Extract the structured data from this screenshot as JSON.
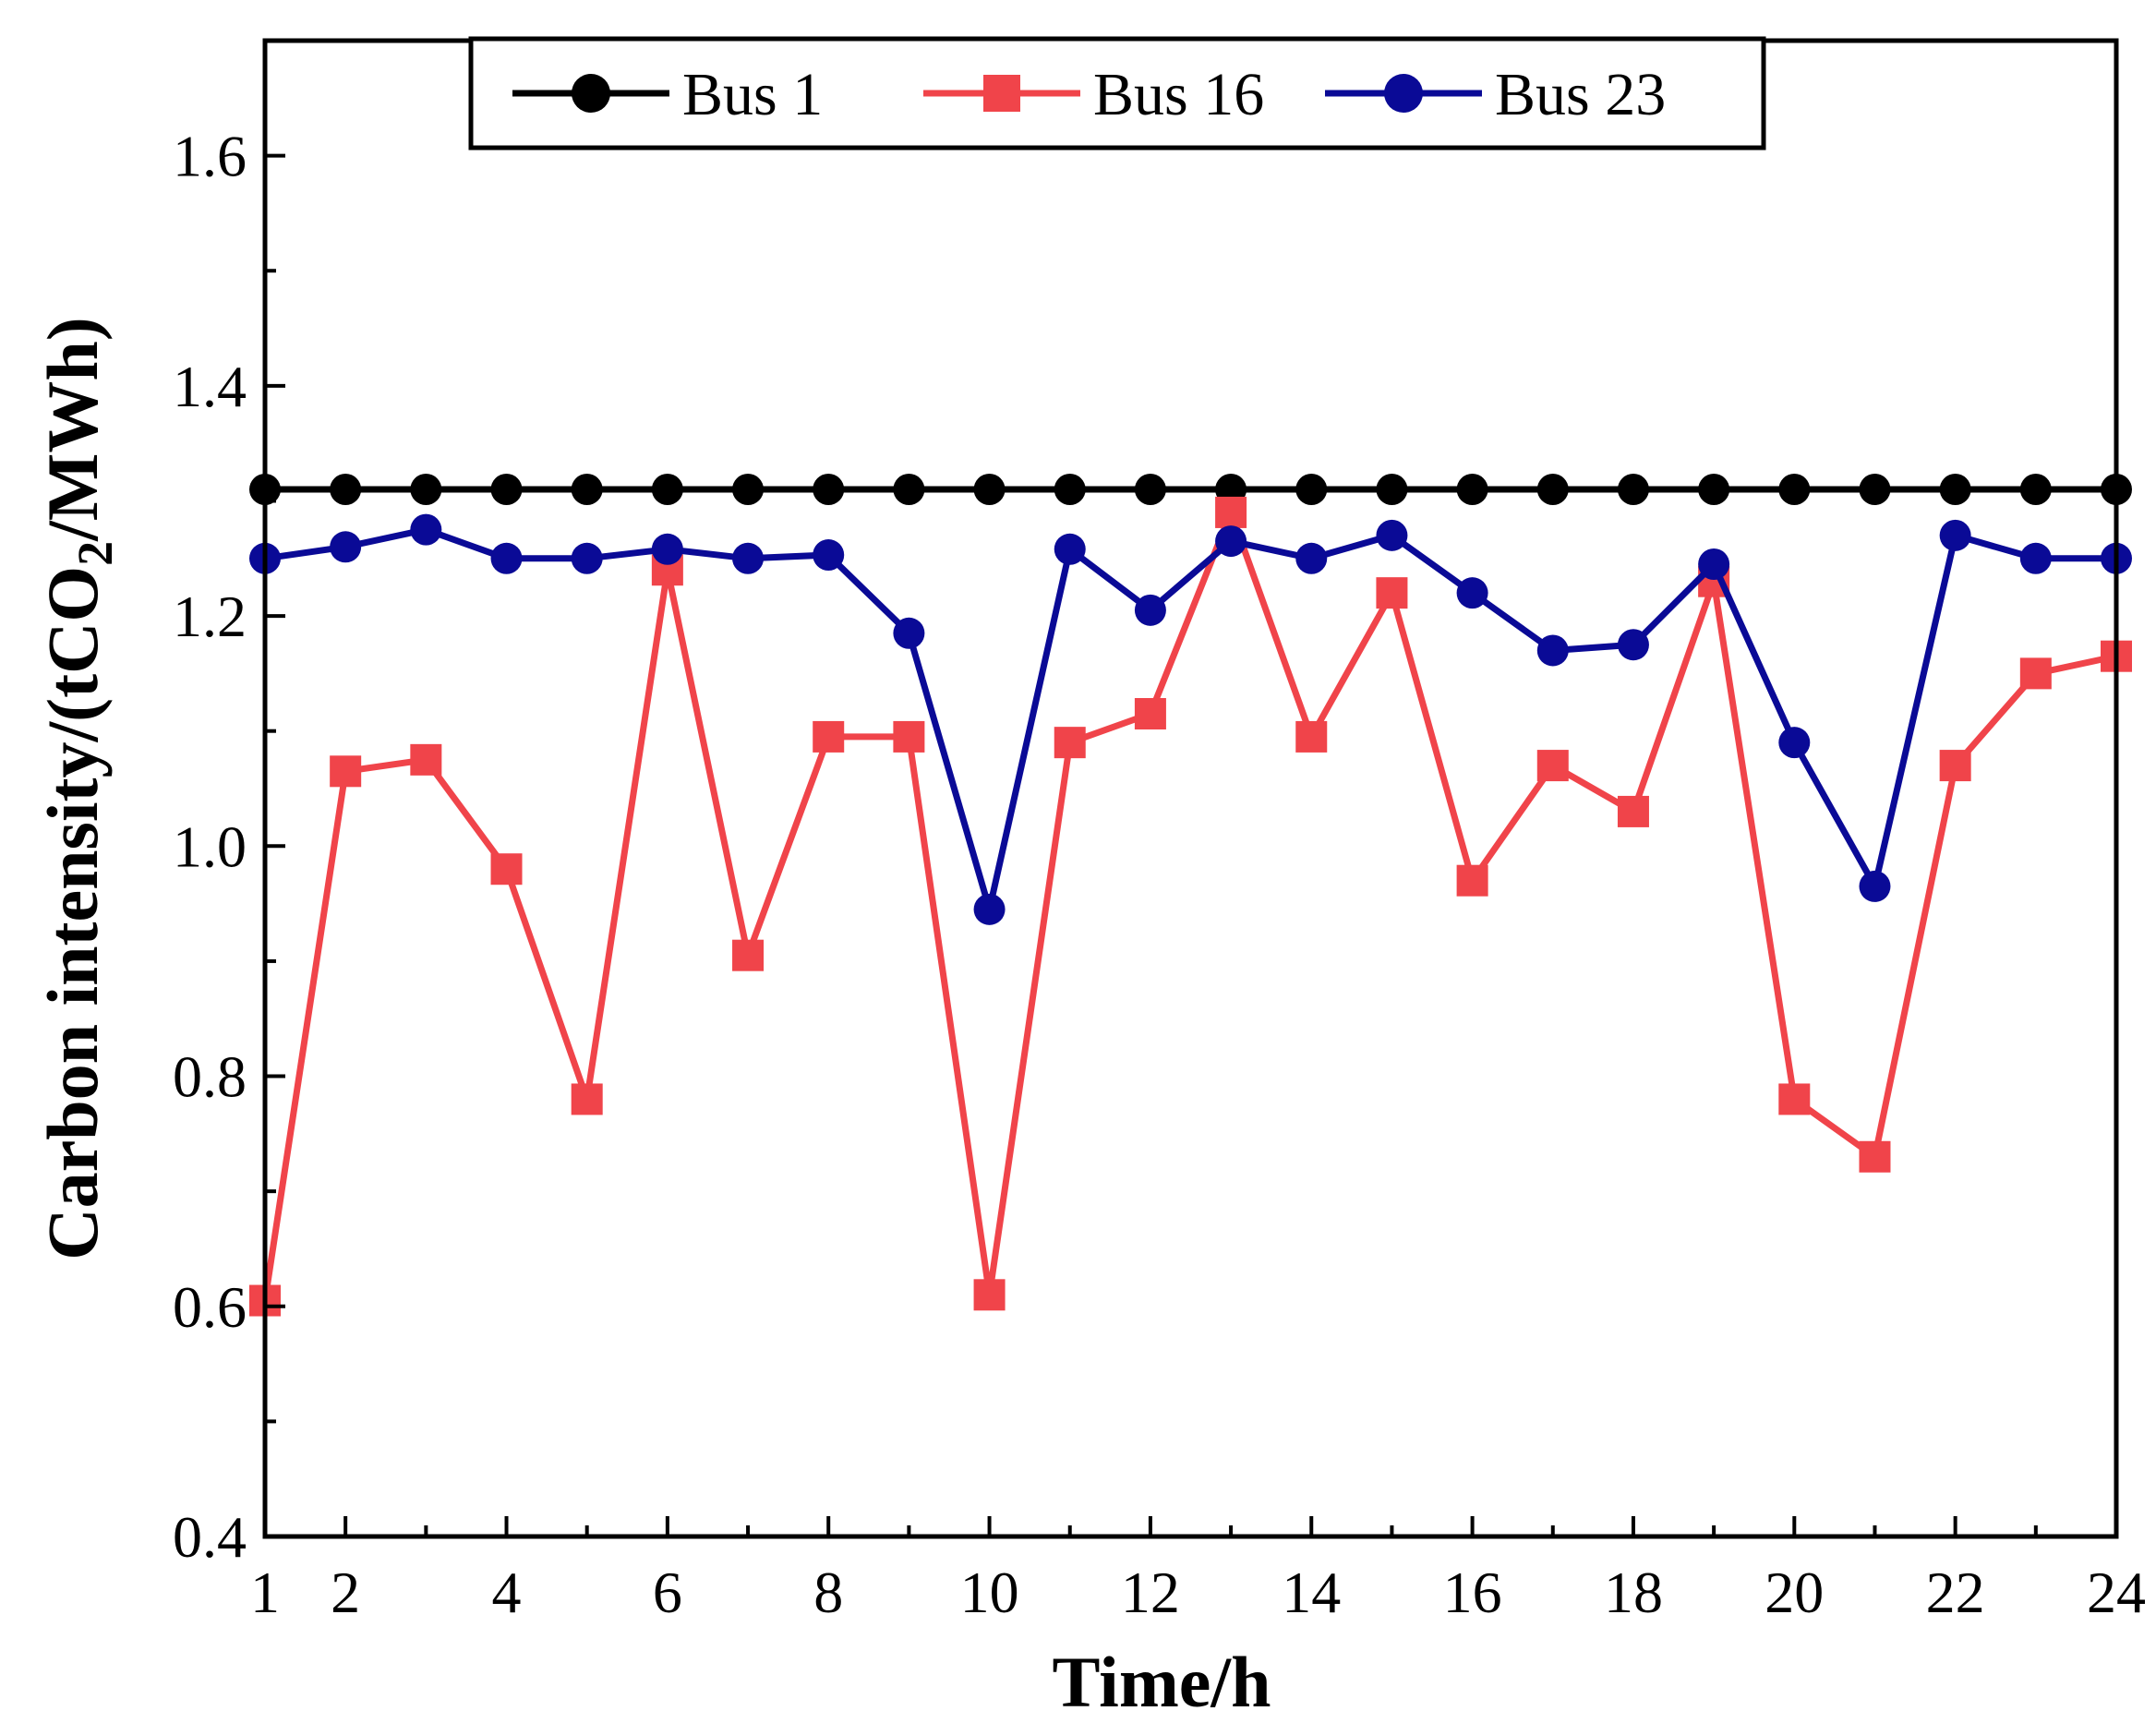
{
  "chart_data": {
    "type": "line",
    "title": "",
    "xlabel": "Time/h",
    "ylabel": {
      "pre": "Carbon intensity/(tCO",
      "sub": "2",
      "post": "/MWh)"
    },
    "xlim": [
      1,
      24
    ],
    "ylim": [
      0.4,
      1.7
    ],
    "x_ticks": [
      1,
      2,
      4,
      6,
      8,
      10,
      12,
      14,
      16,
      18,
      20,
      22,
      24
    ],
    "x_tick_labels": [
      "1",
      "2",
      "4",
      "6",
      "8",
      "10",
      "12",
      "14",
      "16",
      "18",
      "20",
      "22",
      "24"
    ],
    "x_minor_ticks": [
      3,
      5,
      7,
      9,
      11,
      13,
      15,
      17,
      19,
      21,
      23
    ],
    "y_ticks": [
      0.4,
      0.6,
      0.8,
      1.0,
      1.2,
      1.4,
      1.6
    ],
    "y_tick_labels": [
      "0.4",
      "0.6",
      "0.8",
      "1.0",
      "1.2",
      "1.4",
      "1.6"
    ],
    "y_minor_ticks": [
      0.5,
      0.7,
      0.9,
      1.1,
      1.3,
      1.5
    ],
    "grid": false,
    "legend_position": "top-center",
    "x": [
      1,
      2,
      3,
      4,
      5,
      6,
      7,
      8,
      9,
      10,
      11,
      12,
      13,
      14,
      15,
      16,
      17,
      18,
      19,
      20,
      21,
      22,
      23,
      24
    ],
    "series": [
      {
        "name": "Bus 1",
        "color": "#000000",
        "marker": "circle",
        "values": [
          1.31,
          1.31,
          1.31,
          1.31,
          1.31,
          1.31,
          1.31,
          1.31,
          1.31,
          1.31,
          1.31,
          1.31,
          1.31,
          1.31,
          1.31,
          1.31,
          1.31,
          1.31,
          1.31,
          1.31,
          1.31,
          1.31,
          1.31,
          1.31
        ]
      },
      {
        "name": "Bus 16",
        "color": "#f0444a",
        "marker": "square",
        "values": [
          0.605,
          1.065,
          1.075,
          0.98,
          0.78,
          1.24,
          0.905,
          1.095,
          1.095,
          0.61,
          1.09,
          1.115,
          1.29,
          1.095,
          1.22,
          0.97,
          1.07,
          1.03,
          1.23,
          0.78,
          0.73,
          1.07,
          1.15,
          1.165
        ]
      },
      {
        "name": "Bus 23",
        "color": "#0a0a96",
        "marker": "circle",
        "values": [
          1.25,
          1.26,
          1.275,
          1.25,
          1.25,
          1.258,
          1.25,
          1.253,
          1.185,
          0.945,
          1.258,
          1.205,
          1.265,
          1.25,
          1.27,
          1.22,
          1.17,
          1.175,
          1.245,
          1.09,
          0.965,
          1.27,
          1.25,
          1.25
        ]
      }
    ]
  }
}
